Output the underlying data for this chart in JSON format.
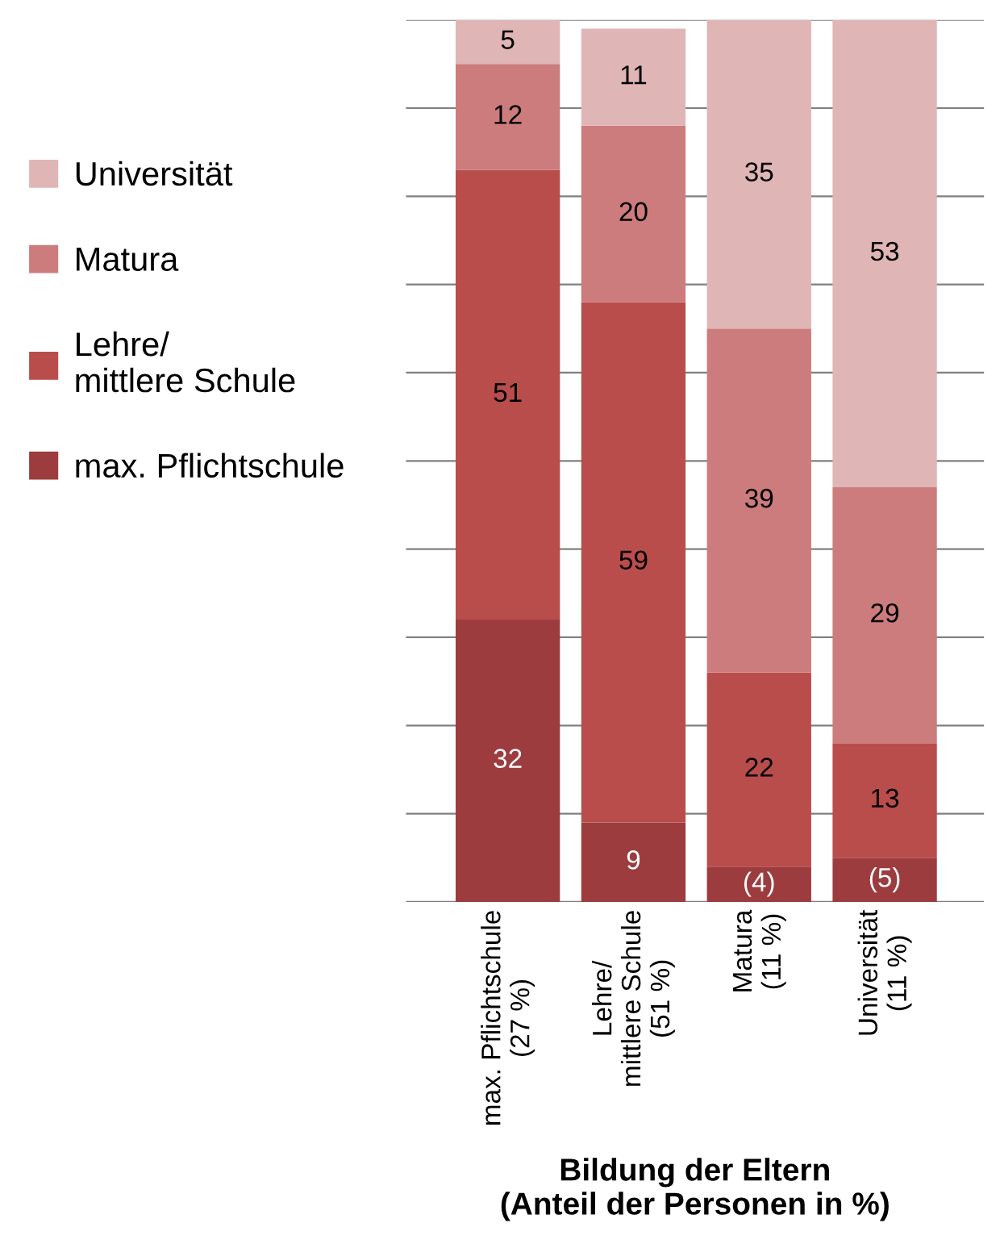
{
  "chart_data": {
    "type": "bar",
    "stacked": true,
    "xlabel": "Bildung der Eltern\n(Anteil der Personen in %)",
    "categories": [
      "max. Pflichtschule\n(27 %)",
      "Lehre/\nmittlere Schule\n(51 %)",
      "Matura\n(11 %)",
      "Universität\n(11 %)"
    ],
    "series": [
      {
        "name": "max. Pflichtschule",
        "color": "#9c3c3f",
        "values": [
          32,
          9,
          4,
          5
        ],
        "value_labels": [
          "32",
          "9",
          "(4)",
          "(5)"
        ]
      },
      {
        "name": "Lehre/\nmittlere Schule",
        "color": "#b94d4b",
        "values": [
          51,
          59,
          22,
          13
        ],
        "value_labels": [
          "51",
          "59",
          "22",
          "13"
        ]
      },
      {
        "name": "Matura",
        "color": "#cc7c7d",
        "values": [
          12,
          20,
          39,
          29
        ],
        "value_labels": [
          "12",
          "20",
          "39",
          "29"
        ]
      },
      {
        "name": "Universität",
        "color": "#e0b5b6",
        "values": [
          5,
          11,
          35,
          53
        ],
        "value_labels": [
          "5",
          "11",
          "35",
          "53"
        ]
      }
    ],
    "ylim": [
      0,
      100
    ],
    "yticks": [
      {
        "value": 0,
        "label": null
      },
      {
        "value": 10,
        "label": null
      },
      {
        "value": 20,
        "label": null
      },
      {
        "value": 30,
        "label": null
      },
      {
        "value": 40,
        "label": null
      },
      {
        "value": 50,
        "label": null
      },
      {
        "value": 60,
        "label": null
      },
      {
        "value": 70,
        "label": null
      },
      {
        "value": 80,
        "label": null
      },
      {
        "value": 90,
        "label": null
      },
      {
        "value": 100,
        "label": null
      }
    ],
    "grid": "y",
    "legend": "left",
    "tick_labels": "x"
  }
}
